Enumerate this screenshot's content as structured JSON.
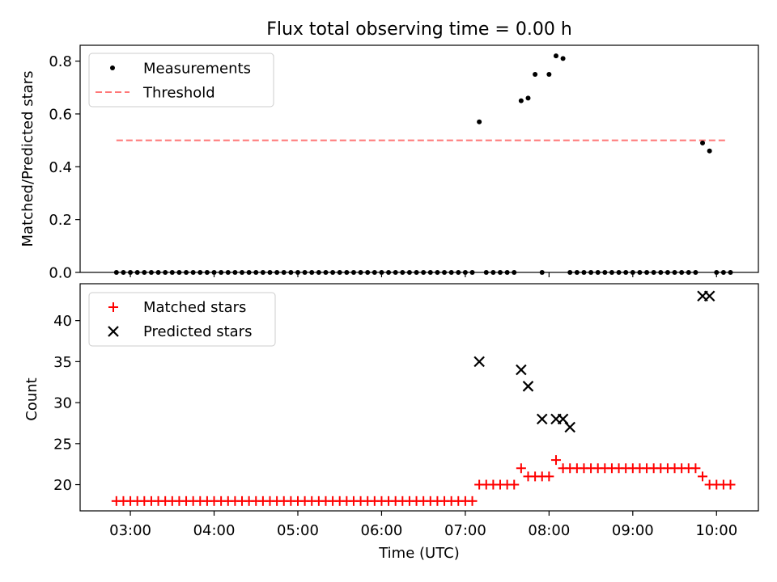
{
  "title": "Flux total observing time = 0.00 h",
  "chart_data": [
    {
      "type": "scatter",
      "ylabel": "Matched/Predicted stars",
      "ylim": [
        0,
        0.86
      ],
      "yticks": [
        0.0,
        0.2,
        0.4,
        0.6,
        0.8
      ],
      "ytick_labels": [
        "0.0",
        "0.2",
        "0.4",
        "0.6",
        "0.8"
      ],
      "legend_position": "top-left",
      "grid": false,
      "series": [
        {
          "name": "Measurements",
          "kind": "scatter",
          "marker": "dot",
          "color": "#000000",
          "x": [
            "02:50",
            "02:55",
            "03:00",
            "03:05",
            "03:10",
            "03:15",
            "03:20",
            "03:25",
            "03:30",
            "03:35",
            "03:40",
            "03:45",
            "03:50",
            "03:55",
            "04:00",
            "04:05",
            "04:10",
            "04:15",
            "04:20",
            "04:25",
            "04:30",
            "04:35",
            "04:40",
            "04:45",
            "04:50",
            "04:55",
            "05:00",
            "05:05",
            "05:10",
            "05:15",
            "05:20",
            "05:25",
            "05:30",
            "05:35",
            "05:40",
            "05:45",
            "05:50",
            "05:55",
            "06:00",
            "06:05",
            "06:10",
            "06:15",
            "06:20",
            "06:25",
            "06:30",
            "06:35",
            "06:40",
            "06:45",
            "06:50",
            "06:55",
            "07:00",
            "07:05",
            "07:10",
            "07:15",
            "07:20",
            "07:25",
            "07:30",
            "07:35",
            "07:40",
            "07:45",
            "07:50",
            "07:55",
            "08:00",
            "08:05",
            "08:10",
            "08:15",
            "08:20",
            "08:25",
            "08:30",
            "08:35",
            "08:40",
            "08:45",
            "08:50",
            "08:55",
            "09:00",
            "09:05",
            "09:10",
            "09:15",
            "09:20",
            "09:25",
            "09:30",
            "09:35",
            "09:40",
            "09:45",
            "09:50",
            "09:55",
            "10:00",
            "10:05",
            "10:10"
          ],
          "y": [
            0,
            0,
            0,
            0,
            0,
            0,
            0,
            0,
            0,
            0,
            0,
            0,
            0,
            0,
            0,
            0,
            0,
            0,
            0,
            0,
            0,
            0,
            0,
            0,
            0,
            0,
            0,
            0,
            0,
            0,
            0,
            0,
            0,
            0,
            0,
            0,
            0,
            0,
            0,
            0,
            0,
            0,
            0,
            0,
            0,
            0,
            0,
            0,
            0,
            0,
            0,
            0,
            0.57,
            0,
            0,
            0,
            0,
            0,
            0.65,
            0.66,
            0.75,
            0,
            0.75,
            0.82,
            0.81,
            0,
            0,
            0,
            0,
            0,
            0,
            0,
            0,
            0,
            0,
            0,
            0,
            0,
            0,
            0,
            0,
            0,
            0,
            0,
            0.49,
            0.46,
            0,
            0,
            0
          ]
        },
        {
          "name": "Threshold",
          "kind": "line",
          "style": "dashed",
          "color": "#ff7777",
          "x": [
            "02:50",
            "10:08"
          ],
          "y": [
            0.5,
            0.5
          ]
        }
      ]
    },
    {
      "type": "scatter",
      "xlabel": "Time (UTC)",
      "ylabel": "Count",
      "xlim": [
        "02:24",
        "10:30"
      ],
      "ylim": [
        16.8,
        44.5
      ],
      "xticks": [
        "03:00",
        "04:00",
        "05:00",
        "06:00",
        "07:00",
        "08:00",
        "09:00",
        "10:00"
      ],
      "yticks": [
        20,
        25,
        30,
        35,
        40
      ],
      "ytick_labels": [
        "20",
        "25",
        "30",
        "35",
        "40"
      ],
      "legend_position": "top-left",
      "grid": false,
      "series": [
        {
          "name": "Matched stars",
          "kind": "scatter",
          "marker": "plus",
          "color": "#ff0000",
          "x": [
            "02:50",
            "02:55",
            "03:00",
            "03:05",
            "03:10",
            "03:15",
            "03:20",
            "03:25",
            "03:30",
            "03:35",
            "03:40",
            "03:45",
            "03:50",
            "03:55",
            "04:00",
            "04:05",
            "04:10",
            "04:15",
            "04:20",
            "04:25",
            "04:30",
            "04:35",
            "04:40",
            "04:45",
            "04:50",
            "04:55",
            "05:00",
            "05:05",
            "05:10",
            "05:15",
            "05:20",
            "05:25",
            "05:30",
            "05:35",
            "05:40",
            "05:45",
            "05:50",
            "05:55",
            "06:00",
            "06:05",
            "06:10",
            "06:15",
            "06:20",
            "06:25",
            "06:30",
            "06:35",
            "06:40",
            "06:45",
            "06:50",
            "06:55",
            "07:00",
            "07:05",
            "07:10",
            "07:15",
            "07:20",
            "07:25",
            "07:30",
            "07:35",
            "07:40",
            "07:45",
            "07:50",
            "07:55",
            "08:00",
            "08:05",
            "08:10",
            "08:15",
            "08:20",
            "08:25",
            "08:30",
            "08:35",
            "08:40",
            "08:45",
            "08:50",
            "08:55",
            "09:00",
            "09:05",
            "09:10",
            "09:15",
            "09:20",
            "09:25",
            "09:30",
            "09:35",
            "09:40",
            "09:45",
            "09:50",
            "09:55",
            "10:00",
            "10:05",
            "10:10"
          ],
          "y": [
            18,
            18,
            18,
            18,
            18,
            18,
            18,
            18,
            18,
            18,
            18,
            18,
            18,
            18,
            18,
            18,
            18,
            18,
            18,
            18,
            18,
            18,
            18,
            18,
            18,
            18,
            18,
            18,
            18,
            18,
            18,
            18,
            18,
            18,
            18,
            18,
            18,
            18,
            18,
            18,
            18,
            18,
            18,
            18,
            18,
            18,
            18,
            18,
            18,
            18,
            18,
            18,
            20,
            20,
            20,
            20,
            20,
            20,
            22,
            21,
            21,
            21,
            21,
            23,
            22,
            22,
            22,
            22,
            22,
            22,
            22,
            22,
            22,
            22,
            22,
            22,
            22,
            22,
            22,
            22,
            22,
            22,
            22,
            22,
            21,
            20,
            20,
            20,
            20
          ]
        },
        {
          "name": "Predicted stars",
          "kind": "scatter",
          "marker": "x",
          "color": "#000000",
          "x": [
            "07:10",
            "07:40",
            "07:45",
            "07:55",
            "08:05",
            "08:10",
            "08:15",
            "09:50",
            "09:55"
          ],
          "y": [
            35,
            34,
            32,
            28,
            28,
            28,
            27,
            43,
            43
          ]
        }
      ]
    }
  ]
}
